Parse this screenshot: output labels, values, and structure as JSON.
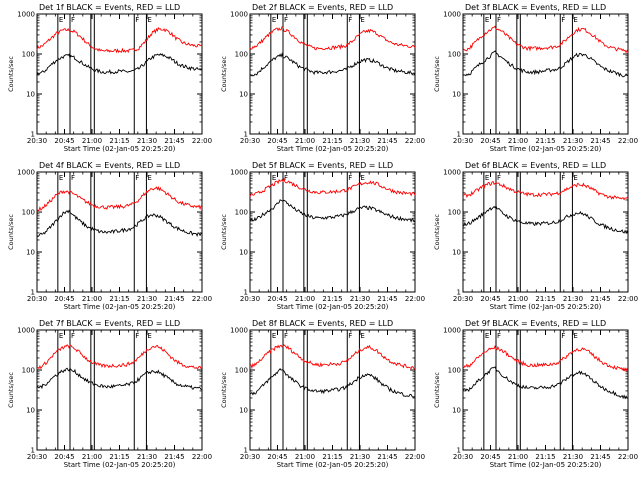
{
  "figure": {
    "background": "#ffffff",
    "axis_color": "#000000"
  },
  "chart_data": [
    {
      "type": "line",
      "title": "Det 1f BLACK = Events, RED = LLD",
      "xlabel": "Start Time (02-Jan-05 20:25:20)",
      "ylabel": "Counts/sec",
      "x_ticks": [
        "20:30",
        "20:45",
        "21:00",
        "21:15",
        "21:30",
        "21:45",
        "22:00"
      ],
      "y_ticks": [
        "1000",
        "100",
        "10",
        "1"
      ],
      "y_scale": "log",
      "ylim": [
        1,
        1000
      ],
      "xlim_min": [
        5,
        100
      ],
      "markers": [
        {
          "x": 17,
          "label": "E"
        },
        {
          "x": 24,
          "label": "F"
        },
        {
          "x": 36
        },
        {
          "x": 38
        },
        {
          "x": 61,
          "label": "F"
        },
        {
          "x": 68,
          "label": "E"
        }
      ],
      "series": [
        {
          "color": "#ff0000",
          "values": [
            140,
            165,
            230,
            320,
            390,
            400,
            350,
            260,
            180,
            140,
            120,
            118,
            120,
            122,
            120,
            122,
            140,
            200,
            320,
            410,
            420,
            340,
            240,
            190,
            170,
            160,
            155
          ]
        },
        {
          "color": "#000000",
          "values": [
            32,
            35,
            50,
            68,
            85,
            90,
            80,
            62,
            48,
            40,
            36,
            35,
            36,
            37,
            36,
            37,
            42,
            58,
            80,
            95,
            92,
            78,
            60,
            50,
            45,
            42,
            40
          ]
        }
      ]
    },
    {
      "type": "line",
      "title": "Det 2f BLACK = Events, RED = LLD",
      "xlabel": "Start Time (02-Jan-05 20:25:20)",
      "ylabel": "Counts/sec",
      "x_ticks": [
        "20:30",
        "20:45",
        "21:00",
        "21:15",
        "21:30",
        "21:45",
        "22:00"
      ],
      "y_ticks": [
        "1000",
        "100",
        "10",
        "1"
      ],
      "y_scale": "log",
      "ylim": [
        1,
        1000
      ],
      "xlim_min": [
        5,
        100
      ],
      "markers": [
        {
          "x": 17,
          "label": "E"
        },
        {
          "x": 24,
          "label": "F"
        },
        {
          "x": 36
        },
        {
          "x": 38
        },
        {
          "x": 61,
          "label": "F"
        },
        {
          "x": 68,
          "label": "E"
        }
      ],
      "series": [
        {
          "color": "#ff0000",
          "values": [
            140,
            160,
            220,
            310,
            400,
            440,
            360,
            270,
            200,
            160,
            140,
            138,
            142,
            145,
            150,
            160,
            200,
            280,
            360,
            380,
            330,
            250,
            200,
            175,
            165,
            158,
            150
          ]
        },
        {
          "color": "#000000",
          "values": [
            30,
            32,
            44,
            60,
            80,
            92,
            78,
            60,
            46,
            40,
            35,
            34,
            35,
            36,
            38,
            40,
            50,
            62,
            72,
            70,
            62,
            50,
            42,
            38,
            36,
            34,
            33
          ]
        }
      ]
    },
    {
      "type": "line",
      "title": "Det 3f BLACK = Events, RED = LLD",
      "xlabel": "Start Time (02-Jan-05 20:25:20)",
      "ylabel": "Counts/sec",
      "x_ticks": [
        "20:30",
        "20:45",
        "21:00",
        "21:15",
        "21:30",
        "21:45",
        "22:00"
      ],
      "y_ticks": [
        "1000",
        "100",
        "10",
        "1"
      ],
      "y_scale": "log",
      "ylim": [
        1,
        1000
      ],
      "xlim_min": [
        5,
        100
      ],
      "markers": [
        {
          "x": 17,
          "label": "E"
        },
        {
          "x": 24,
          "label": "F"
        },
        {
          "x": 36
        },
        {
          "x": 38
        },
        {
          "x": 61,
          "label": "F"
        },
        {
          "x": 68,
          "label": "E"
        }
      ],
      "series": [
        {
          "color": "#ff0000",
          "values": [
            120,
            140,
            200,
            290,
            380,
            460,
            380,
            280,
            200,
            160,
            140,
            138,
            140,
            145,
            148,
            160,
            210,
            300,
            400,
            420,
            340,
            250,
            180,
            150,
            135,
            125,
            120
          ]
        },
        {
          "color": "#000000",
          "values": [
            30,
            32,
            45,
            62,
            82,
            110,
            85,
            62,
            48,
            40,
            36,
            35,
            36,
            38,
            40,
            42,
            55,
            75,
            95,
            98,
            80,
            58,
            45,
            38,
            34,
            30,
            28
          ]
        }
      ]
    },
    {
      "type": "line",
      "title": "Det 4f BLACK = Events, RED = LLD",
      "xlabel": "Start Time (02-Jan-05 20:25:20)",
      "ylabel": "Counts/sec",
      "x_ticks": [
        "20:30",
        "20:45",
        "21:00",
        "21:15",
        "21:30",
        "21:45",
        "22:00"
      ],
      "y_ticks": [
        "1000",
        "100",
        "10",
        "1"
      ],
      "y_scale": "log",
      "ylim": [
        1,
        1000
      ],
      "xlim_min": [
        5,
        100
      ],
      "markers": [
        {
          "x": 17,
          "label": "E"
        },
        {
          "x": 24,
          "label": "F"
        },
        {
          "x": 36
        },
        {
          "x": 38
        },
        {
          "x": 61,
          "label": "F"
        },
        {
          "x": 68,
          "label": "E"
        }
      ],
      "series": [
        {
          "color": "#ff0000",
          "values": [
            110,
            130,
            180,
            260,
            330,
            320,
            270,
            210,
            170,
            145,
            135,
            130,
            132,
            135,
            140,
            155,
            200,
            290,
            380,
            400,
            330,
            250,
            190,
            160,
            145,
            135,
            130
          ]
        },
        {
          "color": "#000000",
          "values": [
            25,
            28,
            40,
            60,
            90,
            110,
            75,
            55,
            42,
            36,
            32,
            31,
            32,
            34,
            36,
            40,
            52,
            70,
            85,
            82,
            65,
            50,
            40,
            34,
            30,
            28,
            27
          ]
        }
      ]
    },
    {
      "type": "line",
      "title": "Det 5f BLACK = Events, RED = LLD",
      "xlabel": "Start Time (02-Jan-05 20:25:20)",
      "ylabel": "Counts/sec",
      "x_ticks": [
        "20:30",
        "20:45",
        "21:00",
        "21:15",
        "21:30",
        "21:45",
        "22:00"
      ],
      "y_ticks": [
        "1000",
        "100",
        "10",
        "1"
      ],
      "y_scale": "log",
      "ylim": [
        1,
        1000
      ],
      "xlim_min": [
        5,
        100
      ],
      "markers": [
        {
          "x": 17,
          "label": "E"
        },
        {
          "x": 24,
          "label": "F"
        },
        {
          "x": 36
        },
        {
          "x": 38
        },
        {
          "x": 61,
          "label": "F"
        },
        {
          "x": 68,
          "label": "E"
        }
      ],
      "series": [
        {
          "color": "#ff0000",
          "values": [
            260,
            280,
            340,
            420,
            520,
            620,
            580,
            480,
            400,
            350,
            320,
            310,
            315,
            320,
            330,
            350,
            400,
            470,
            540,
            560,
            500,
            420,
            360,
            320,
            300,
            290,
            280
          ]
        },
        {
          "color": "#000000",
          "values": [
            60,
            65,
            85,
            110,
            140,
            210,
            160,
            120,
            95,
            80,
            72,
            70,
            72,
            74,
            78,
            85,
            100,
            120,
            130,
            125,
            110,
            92,
            80,
            72,
            68,
            64,
            60
          ]
        }
      ]
    },
    {
      "type": "line",
      "title": "Det 6f BLACK = Events, RED = LLD",
      "xlabel": "Start Time (02-Jan-05 20:25:20)",
      "ylabel": "Counts/sec",
      "x_ticks": [
        "20:30",
        "20:45",
        "21:00",
        "21:15",
        "21:30",
        "21:45",
        "22:00"
      ],
      "y_ticks": [
        "1000",
        "100",
        "10",
        "1"
      ],
      "y_scale": "log",
      "ylim": [
        1,
        1000
      ],
      "xlim_min": [
        5,
        100
      ],
      "markers": [
        {
          "x": 17,
          "label": "E"
        },
        {
          "x": 24,
          "label": "F"
        },
        {
          "x": 36
        },
        {
          "x": 38
        },
        {
          "x": 61,
          "label": "F"
        },
        {
          "x": 68,
          "label": "E"
        }
      ],
      "series": [
        {
          "color": "#ff0000",
          "values": [
            250,
            270,
            330,
            420,
            500,
            540,
            480,
            400,
            340,
            300,
            280,
            270,
            272,
            276,
            280,
            300,
            350,
            420,
            480,
            470,
            400,
            320,
            270,
            240,
            225,
            215,
            210
          ]
        },
        {
          "color": "#000000",
          "values": [
            48,
            52,
            66,
            85,
            115,
            140,
            100,
            78,
            64,
            56,
            52,
            50,
            51,
            52,
            54,
            58,
            70,
            85,
            95,
            90,
            72,
            56,
            46,
            40,
            36,
            33,
            31
          ]
        }
      ]
    },
    {
      "type": "line",
      "title": "Det 7f BLACK = Events, RED = LLD",
      "xlabel": "Start Time (02-Jan-05 20:25:20)",
      "ylabel": "Counts/sec",
      "x_ticks": [
        "20:30",
        "20:45",
        "21:00",
        "21:15",
        "21:30",
        "21:45",
        "22:00"
      ],
      "y_ticks": [
        "1000",
        "100",
        "10",
        "1"
      ],
      "y_scale": "log",
      "ylim": [
        1,
        1000
      ],
      "xlim_min": [
        5,
        100
      ],
      "markers": [
        {
          "x": 17,
          "label": "E"
        },
        {
          "x": 24,
          "label": "F"
        },
        {
          "x": 36
        },
        {
          "x": 38
        },
        {
          "x": 61,
          "label": "F"
        },
        {
          "x": 68,
          "label": "E"
        }
      ],
      "series": [
        {
          "color": "#ff0000",
          "values": [
            110,
            130,
            190,
            280,
            360,
            400,
            340,
            250,
            180,
            145,
            130,
            126,
            128,
            130,
            135,
            150,
            200,
            290,
            380,
            390,
            310,
            220,
            160,
            135,
            122,
            115,
            110
          ]
        },
        {
          "color": "#000000",
          "values": [
            36,
            40,
            55,
            75,
            95,
            105,
            90,
            68,
            52,
            44,
            40,
            38,
            39,
            40,
            42,
            46,
            58,
            78,
            92,
            90,
            74,
            56,
            45,
            40,
            37,
            35,
            34
          ]
        }
      ]
    },
    {
      "type": "line",
      "title": "Det 8f BLACK = Events, RED = LLD",
      "xlabel": "Start Time (02-Jan-05 20:25:20)",
      "ylabel": "Counts/sec",
      "x_ticks": [
        "20:30",
        "20:45",
        "21:00",
        "21:15",
        "21:30",
        "21:45",
        "22:00"
      ],
      "y_ticks": [
        "1000",
        "100",
        "10",
        "1"
      ],
      "y_scale": "log",
      "ylim": [
        1,
        1000
      ],
      "xlim_min": [
        5,
        100
      ],
      "markers": [
        {
          "x": 17,
          "label": "E"
        },
        {
          "x": 24,
          "label": "F"
        },
        {
          "x": 36
        },
        {
          "x": 38
        },
        {
          "x": 61,
          "label": "F"
        },
        {
          "x": 68,
          "label": "E"
        }
      ],
      "series": [
        {
          "color": "#ff0000",
          "values": [
            120,
            140,
            200,
            280,
            360,
            410,
            360,
            270,
            200,
            160,
            140,
            135,
            138,
            140,
            145,
            160,
            210,
            290,
            360,
            370,
            300,
            220,
            170,
            145,
            130,
            120,
            115
          ]
        },
        {
          "color": "#000000",
          "values": [
            25,
            28,
            40,
            58,
            80,
            110,
            70,
            52,
            40,
            34,
            30,
            29,
            30,
            31,
            33,
            36,
            46,
            62,
            76,
            74,
            58,
            42,
            33,
            28,
            25,
            23,
            22
          ]
        }
      ]
    },
    {
      "type": "line",
      "title": "Det 9f BLACK = Events, RED = LLD",
      "xlabel": "Start Time (02-Jan-05 20:25:20)",
      "ylabel": "Counts/sec",
      "x_ticks": [
        "20:30",
        "20:45",
        "21:00",
        "21:15",
        "21:30",
        "21:45",
        "22:00"
      ],
      "y_ticks": [
        "1000",
        "100",
        "10",
        "1"
      ],
      "y_scale": "log",
      "ylim": [
        1,
        1000
      ],
      "xlim_min": [
        5,
        100
      ],
      "markers": [
        {
          "x": 17,
          "label": "E"
        },
        {
          "x": 24,
          "label": "F"
        },
        {
          "x": 36
        },
        {
          "x": 38
        },
        {
          "x": 61,
          "label": "F"
        },
        {
          "x": 68,
          "label": "E"
        }
      ],
      "series": [
        {
          "color": "#ff0000",
          "values": [
            115,
            130,
            180,
            250,
            320,
            360,
            320,
            250,
            190,
            155,
            135,
            130,
            132,
            135,
            140,
            155,
            200,
            270,
            330,
            330,
            270,
            200,
            155,
            130,
            115,
            105,
            100
          ]
        },
        {
          "color": "#000000",
          "values": [
            30,
            33,
            46,
            65,
            90,
            115,
            80,
            60,
            46,
            40,
            36,
            35,
            36,
            37,
            39,
            43,
            55,
            72,
            85,
            82,
            64,
            46,
            36,
            30,
            26,
            22,
            20
          ]
        }
      ]
    }
  ]
}
